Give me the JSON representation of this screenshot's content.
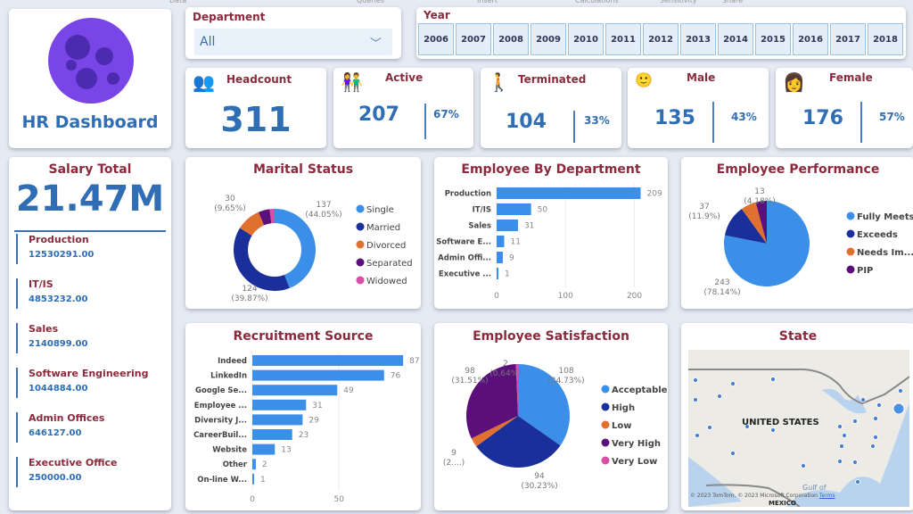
{
  "ribbon": [
    "Data",
    "Queries",
    "Insert",
    "Calculations",
    "Sensitivity",
    "Share"
  ],
  "title": "HR Dashboard",
  "department": {
    "label": "Department",
    "value": "All"
  },
  "year": {
    "label": "Year",
    "options": [
      "2006",
      "2007",
      "2008",
      "2009",
      "2010",
      "2011",
      "2012",
      "2013",
      "2014",
      "2015",
      "2016",
      "2017",
      "2018"
    ]
  },
  "kpis": {
    "headcount": {
      "label": "Headcount",
      "value": "311"
    },
    "active": {
      "label": "Active",
      "value": "207",
      "pct": "67%"
    },
    "terminated": {
      "label": "Terminated",
      "value": "104",
      "pct": "33%"
    },
    "male": {
      "label": "Male",
      "value": "135",
      "pct": "43%"
    },
    "female": {
      "label": "Female",
      "value": "176",
      "pct": "57%"
    }
  },
  "salary": {
    "label": "Salary Total",
    "value": "21.47M",
    "items": [
      {
        "name": "Production",
        "value": "12530291.00"
      },
      {
        "name": "IT/IS",
        "value": "4853232.00"
      },
      {
        "name": "Sales",
        "value": "2140899.00"
      },
      {
        "name": "Software Engineering",
        "value": "1044884.00"
      },
      {
        "name": "Admin Offices",
        "value": "646127.00"
      },
      {
        "name": "Executive Office",
        "value": "250000.00"
      }
    ]
  },
  "chart_data": [
    {
      "id": "marital",
      "type": "pie",
      "donut": true,
      "title": "Marital Status",
      "labels": [
        "Single",
        "Married",
        "Divorced",
        "Separated",
        "Widowed"
      ],
      "values": [
        137,
        124,
        30,
        14,
        6
      ],
      "colors": [
        "#3b8fe8",
        "#1a2f99",
        "#e07030",
        "#5a0f7a",
        "#d94fa8"
      ],
      "data_labels": [
        {
          "v": "137",
          "p": "(44.05%)"
        },
        {
          "v": "124",
          "p": "(39.87%)"
        },
        {
          "v": "30",
          "p": "(9.65%)"
        }
      ]
    },
    {
      "id": "dept",
      "type": "bar",
      "orientation": "horizontal",
      "title": "Employee By Department",
      "categories": [
        "Production",
        "IT/IS",
        "Sales",
        "Software E...",
        "Admin Offi...",
        "Executive ..."
      ],
      "values": [
        209,
        50,
        31,
        11,
        9,
        1
      ],
      "xlim": [
        0,
        220
      ],
      "xticks": [
        0,
        100,
        200
      ]
    },
    {
      "id": "perf",
      "type": "pie",
      "title": "Employee Performance",
      "labels": [
        "Fully Meets",
        "Exceeds",
        "Needs Im...",
        "PIP"
      ],
      "values": [
        243,
        37,
        18,
        13
      ],
      "colors": [
        "#3b8fe8",
        "#1a2f99",
        "#e07030",
        "#5a0f7a"
      ],
      "data_labels": [
        {
          "v": "243",
          "p": "(78.14%)"
        },
        {
          "v": "37",
          "p": "(11.9%)"
        },
        {
          "v": "13",
          "p": "(4.18%)"
        }
      ]
    },
    {
      "id": "recruit",
      "type": "bar",
      "orientation": "horizontal",
      "title": "Recruitment Source",
      "categories": [
        "Indeed",
        "LinkedIn",
        "Google Se...",
        "Employee ...",
        "Diversity J...",
        "CareerBuil...",
        "Website",
        "Other",
        "On-line W..."
      ],
      "values": [
        87,
        76,
        49,
        31,
        29,
        23,
        13,
        2,
        1
      ],
      "xlim": [
        0,
        90
      ],
      "xticks": [
        0,
        50
      ]
    },
    {
      "id": "satis",
      "type": "pie",
      "title": "Employee Satisfaction",
      "labels": [
        "Acceptable",
        "High",
        "Low",
        "Very High",
        "Very Low"
      ],
      "values": [
        108,
        94,
        9,
        98,
        2
      ],
      "colors": [
        "#3b8fe8",
        "#1a2f99",
        "#e07030",
        "#5a0f7a",
        "#d94fa8"
      ],
      "data_labels": [
        {
          "v": "108",
          "p": "(34.73%)"
        },
        {
          "v": "94",
          "p": "(30.23%)"
        },
        {
          "v": "9",
          "p": "(2....)"
        },
        {
          "v": "98",
          "p": "(31.51%)"
        },
        {
          "v": "2",
          "p": "(0.64%)"
        }
      ]
    }
  ],
  "map": {
    "title": "State",
    "country": "UNITED STATES",
    "gulf": "Gulf of",
    "mexico": "MEXICO",
    "attribution": "© 2023 TomTom, © 2023 Microsoft Corporation",
    "terms": "Terms"
  }
}
